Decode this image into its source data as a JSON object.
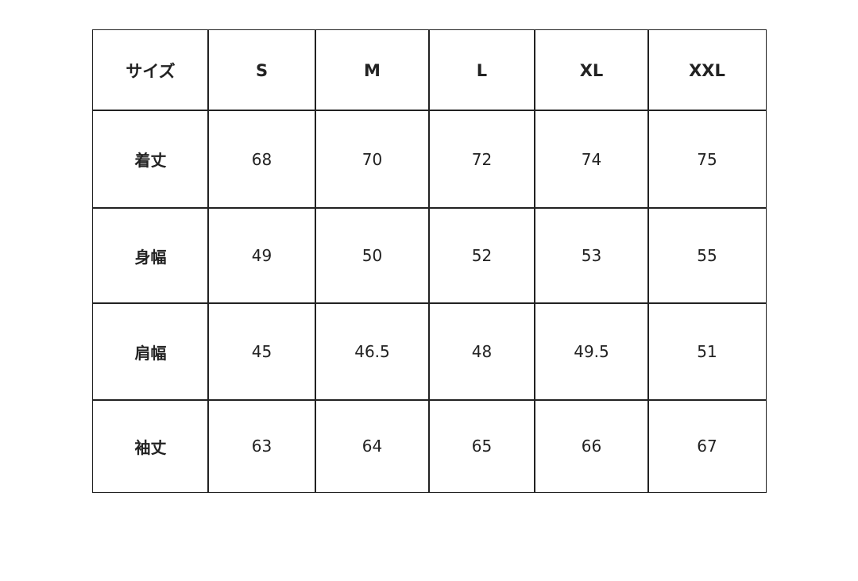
{
  "table": {
    "header": [
      "サイズ",
      "S",
      "M",
      "L",
      "XL",
      "XXL"
    ],
    "rows": [
      [
        "着丈",
        "68",
        "70",
        "72",
        "74",
        "75"
      ],
      [
        "身幅",
        "49",
        "50",
        "52",
        "53",
        "55"
      ],
      [
        "肩幅",
        "45",
        "46.5",
        "48",
        "49.5",
        "51"
      ],
      [
        "袖丈",
        "63",
        "64",
        "65",
        "66",
        "67"
      ]
    ]
  }
}
